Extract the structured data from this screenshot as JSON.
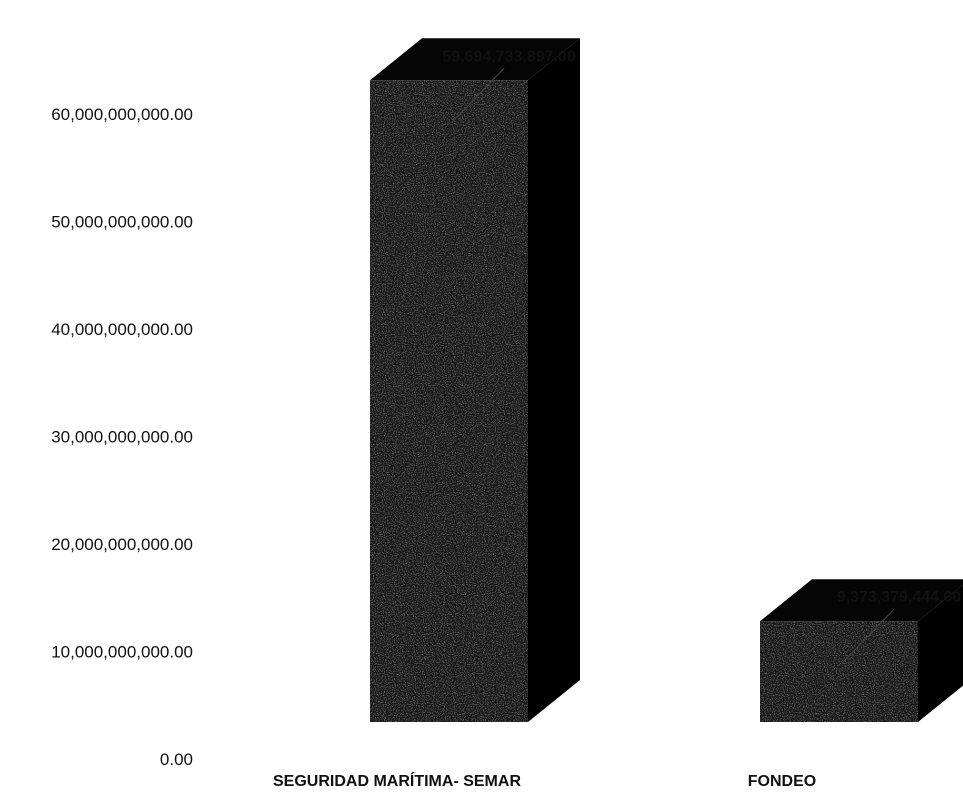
{
  "chart_data": {
    "type": "bar",
    "style": "3d-column",
    "categories": [
      "SEGURIDAD MARÍTIMA- SEMAR",
      "FONDEO"
    ],
    "values": [
      59694733897.0,
      9373379444.0
    ],
    "data_labels": [
      "59,694,733,897.00",
      "9,373,379,444.00"
    ],
    "y_ticks": [
      0,
      10000000000,
      20000000000,
      30000000000,
      40000000000,
      50000000000,
      60000000000
    ],
    "y_tick_labels": [
      "0.00",
      "10,000,000,000.00",
      "20,000,000,000.00",
      "30,000,000,000.00",
      "40,000,000,000.00",
      "50,000,000,000.00",
      "60,000,000,000.00"
    ],
    "ylim": [
      0,
      60000000000
    ],
    "grid": false,
    "legend": "none",
    "colors": {
      "bar_front": "#151515",
      "bar_top": "#050505",
      "bar_side": "#000000",
      "leader_line": "#444444",
      "text": "#111111"
    }
  }
}
